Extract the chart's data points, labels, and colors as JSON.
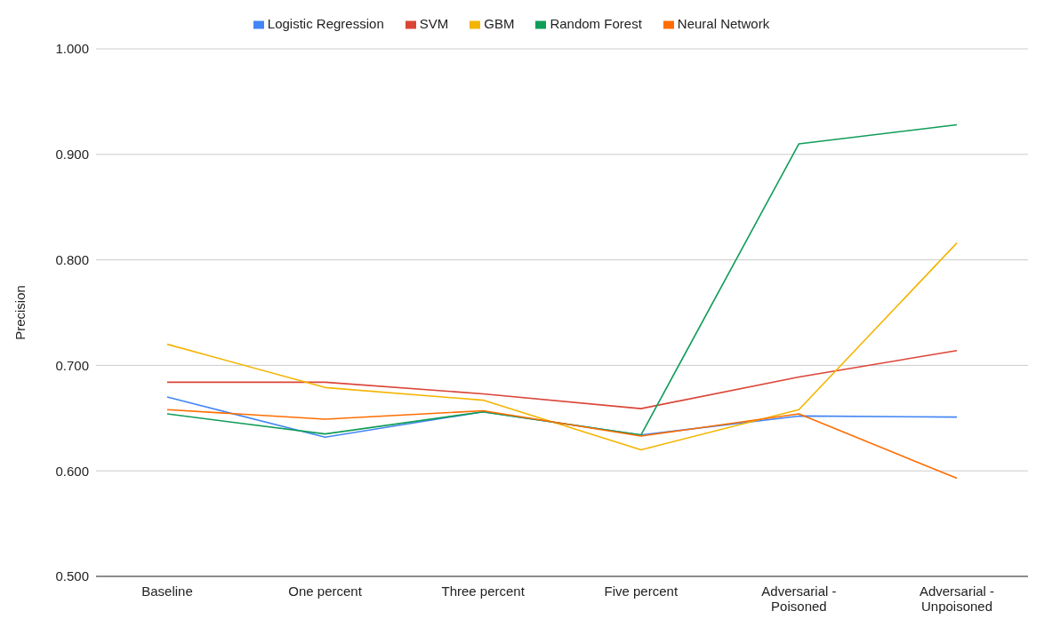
{
  "chart_data": {
    "type": "line",
    "ylabel": "Precision",
    "categories": [
      "Baseline",
      "One percent",
      "Three percent",
      "Five percent",
      "Adversarial - Poisoned",
      "Adversarial - Unpoisoned"
    ],
    "series": [
      {
        "name": "Logistic Regression",
        "color": "#4285f4",
        "values": [
          0.67,
          0.632,
          0.656,
          0.634,
          0.652,
          0.651
        ]
      },
      {
        "name": "SVM",
        "color": "#db4437",
        "values": [
          0.684,
          0.684,
          0.673,
          0.659,
          0.689,
          0.714
        ]
      },
      {
        "name": "GBM",
        "color": "#f4b400",
        "values": [
          0.72,
          0.679,
          0.667,
          0.62,
          0.658,
          0.816
        ]
      },
      {
        "name": "Random Forest",
        "color": "#0f9d58",
        "values": [
          0.654,
          0.635,
          0.656,
          0.634,
          0.91,
          0.928
        ]
      },
      {
        "name": "Neural Network",
        "color": "#ff6d01",
        "values": [
          0.658,
          0.649,
          0.657,
          0.633,
          0.654,
          0.593
        ]
      }
    ],
    "ylim": [
      0.5,
      1.0
    ],
    "yticks": [
      {
        "value": 0.5,
        "label": "0.500"
      },
      {
        "value": 0.6,
        "label": "0.600"
      },
      {
        "value": 0.7,
        "label": "0.700"
      },
      {
        "value": 0.8,
        "label": "0.800"
      },
      {
        "value": 0.9,
        "label": "0.900"
      },
      {
        "value": 1.0,
        "label": "1.000"
      }
    ],
    "grid": "y",
    "legend": "top",
    "marker": "none",
    "line_style": "solid"
  }
}
